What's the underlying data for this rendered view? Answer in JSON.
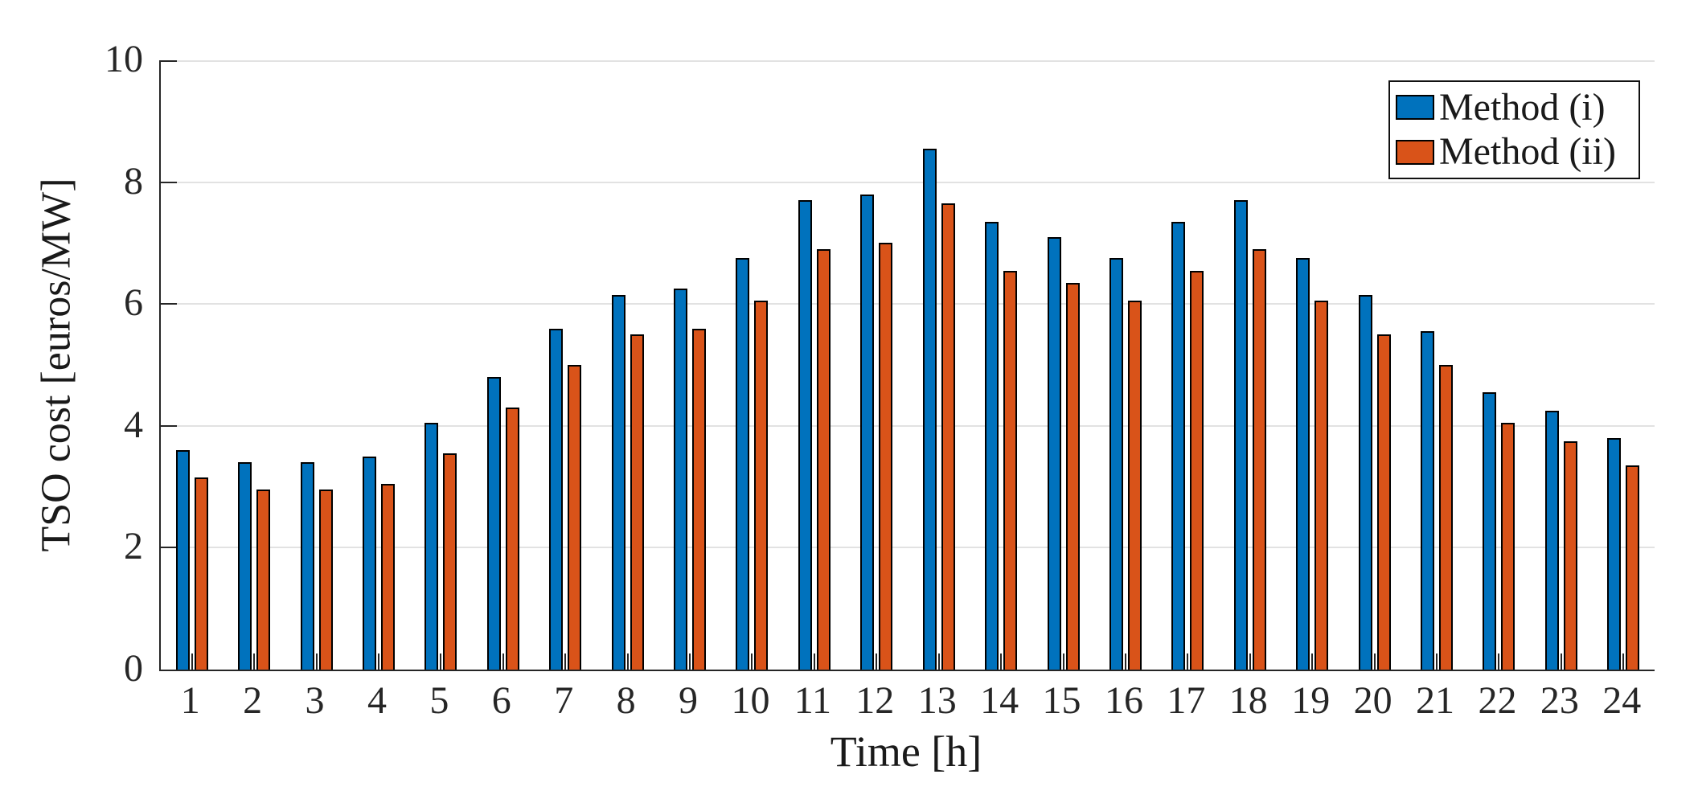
{
  "chart_data": {
    "type": "bar",
    "title": "",
    "xlabel": "Time [h]",
    "ylabel": "TSO cost [euros/MW]",
    "categories": [
      "1",
      "2",
      "3",
      "4",
      "5",
      "6",
      "7",
      "8",
      "9",
      "10",
      "11",
      "12",
      "13",
      "14",
      "15",
      "16",
      "17",
      "18",
      "19",
      "20",
      "21",
      "22",
      "23",
      "24"
    ],
    "series": [
      {
        "name": "Method (i)",
        "color": "#0072BD",
        "values": [
          3.6,
          3.4,
          3.4,
          3.5,
          4.05,
          4.8,
          5.6,
          6.15,
          6.25,
          6.75,
          7.7,
          7.8,
          8.55,
          7.35,
          7.1,
          6.75,
          7.35,
          7.7,
          6.75,
          6.15,
          5.55,
          4.55,
          4.25,
          3.8
        ]
      },
      {
        "name": "Method (ii)",
        "color": "#D95319",
        "values": [
          3.15,
          2.95,
          2.95,
          3.05,
          3.55,
          4.3,
          5.0,
          5.5,
          5.6,
          6.05,
          6.9,
          7.0,
          7.65,
          6.55,
          6.35,
          6.05,
          6.55,
          6.9,
          6.05,
          5.5,
          5.0,
          4.05,
          3.75,
          3.35
        ]
      }
    ],
    "ylim": [
      0,
      10
    ],
    "yticks": [
      0,
      2,
      4,
      6,
      8,
      10
    ],
    "grid": "horizontal",
    "legend_position": "top-right",
    "grid_color": "#e2e2e2",
    "axis_color": "#262626",
    "bar_edge_color": "#000000",
    "background_color": "#ffffff"
  }
}
